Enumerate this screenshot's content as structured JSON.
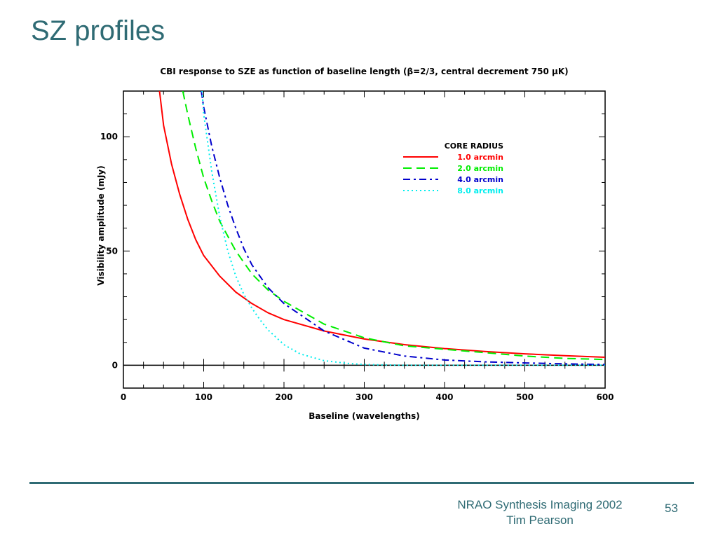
{
  "slide": {
    "title": "SZ profiles",
    "footer_line1": "NRAO Synthesis Imaging 2002",
    "footer_line2": "Tim Pearson",
    "page_number": "53",
    "accent_color": "#2f6b74"
  },
  "chart_data": {
    "type": "line",
    "title": "CBI response to SZE as function of baseline length (β=2/3, central decrement 750 μK)",
    "xlabel": "Baseline (wavelengths)",
    "ylabel": "Visibility amplitude (mJy)",
    "xlim": [
      0,
      600
    ],
    "ylim": [
      -10,
      120
    ],
    "x_ticks": [
      0,
      100,
      200,
      300,
      400,
      500,
      600
    ],
    "y_ticks": [
      0,
      50,
      100
    ],
    "grid": false,
    "legend_title": "CORE RADIUS",
    "legend_position": "top-right",
    "series": [
      {
        "name": "1.0 arcmin",
        "color": "#ff0000",
        "dash": "solid",
        "x": [
          45,
          50,
          60,
          70,
          80,
          90,
          100,
          120,
          140,
          160,
          180,
          200,
          250,
          300,
          350,
          400,
          450,
          500,
          550,
          600
        ],
        "y": [
          120,
          105,
          88,
          75,
          64,
          55,
          48,
          39,
          32,
          27,
          23,
          20,
          15,
          11.5,
          9,
          7.3,
          6,
          5,
          4.2,
          3.5
        ]
      },
      {
        "name": "2.0 arcmin",
        "color": "#00ee00",
        "dash": "dashed",
        "x": [
          74,
          80,
          90,
          100,
          110,
          120,
          140,
          160,
          180,
          200,
          250,
          300,
          350,
          400,
          450,
          500,
          550,
          600
        ],
        "y": [
          120,
          110,
          95,
          82,
          72,
          63,
          50,
          40,
          33,
          28,
          18,
          12,
          8.5,
          7,
          5.5,
          4,
          3,
          2.5
        ]
      },
      {
        "name": "4.0 arcmin",
        "color": "#0000cc",
        "dash": "dashdot",
        "x": [
          97,
          100,
          110,
          120,
          130,
          140,
          150,
          160,
          180,
          200,
          250,
          300,
          350,
          400,
          450,
          500,
          550,
          600
        ],
        "y": [
          120,
          113,
          96,
          82,
          70,
          60,
          51,
          44,
          34,
          27,
          15,
          7.5,
          4,
          2.3,
          1.5,
          1,
          0.6,
          0.3
        ]
      },
      {
        "name": "8.0 arcmin",
        "color": "#00eeee",
        "dash": "dotted",
        "x": [
          98,
          100,
          110,
          120,
          130,
          140,
          150,
          160,
          170,
          180,
          200,
          220,
          250,
          280,
          300,
          350,
          400,
          600
        ],
        "y": [
          120,
          110,
          85,
          65,
          50,
          39,
          31,
          25,
          20,
          15.5,
          9,
          5,
          2,
          0.8,
          0.3,
          0,
          0,
          0
        ]
      }
    ]
  }
}
